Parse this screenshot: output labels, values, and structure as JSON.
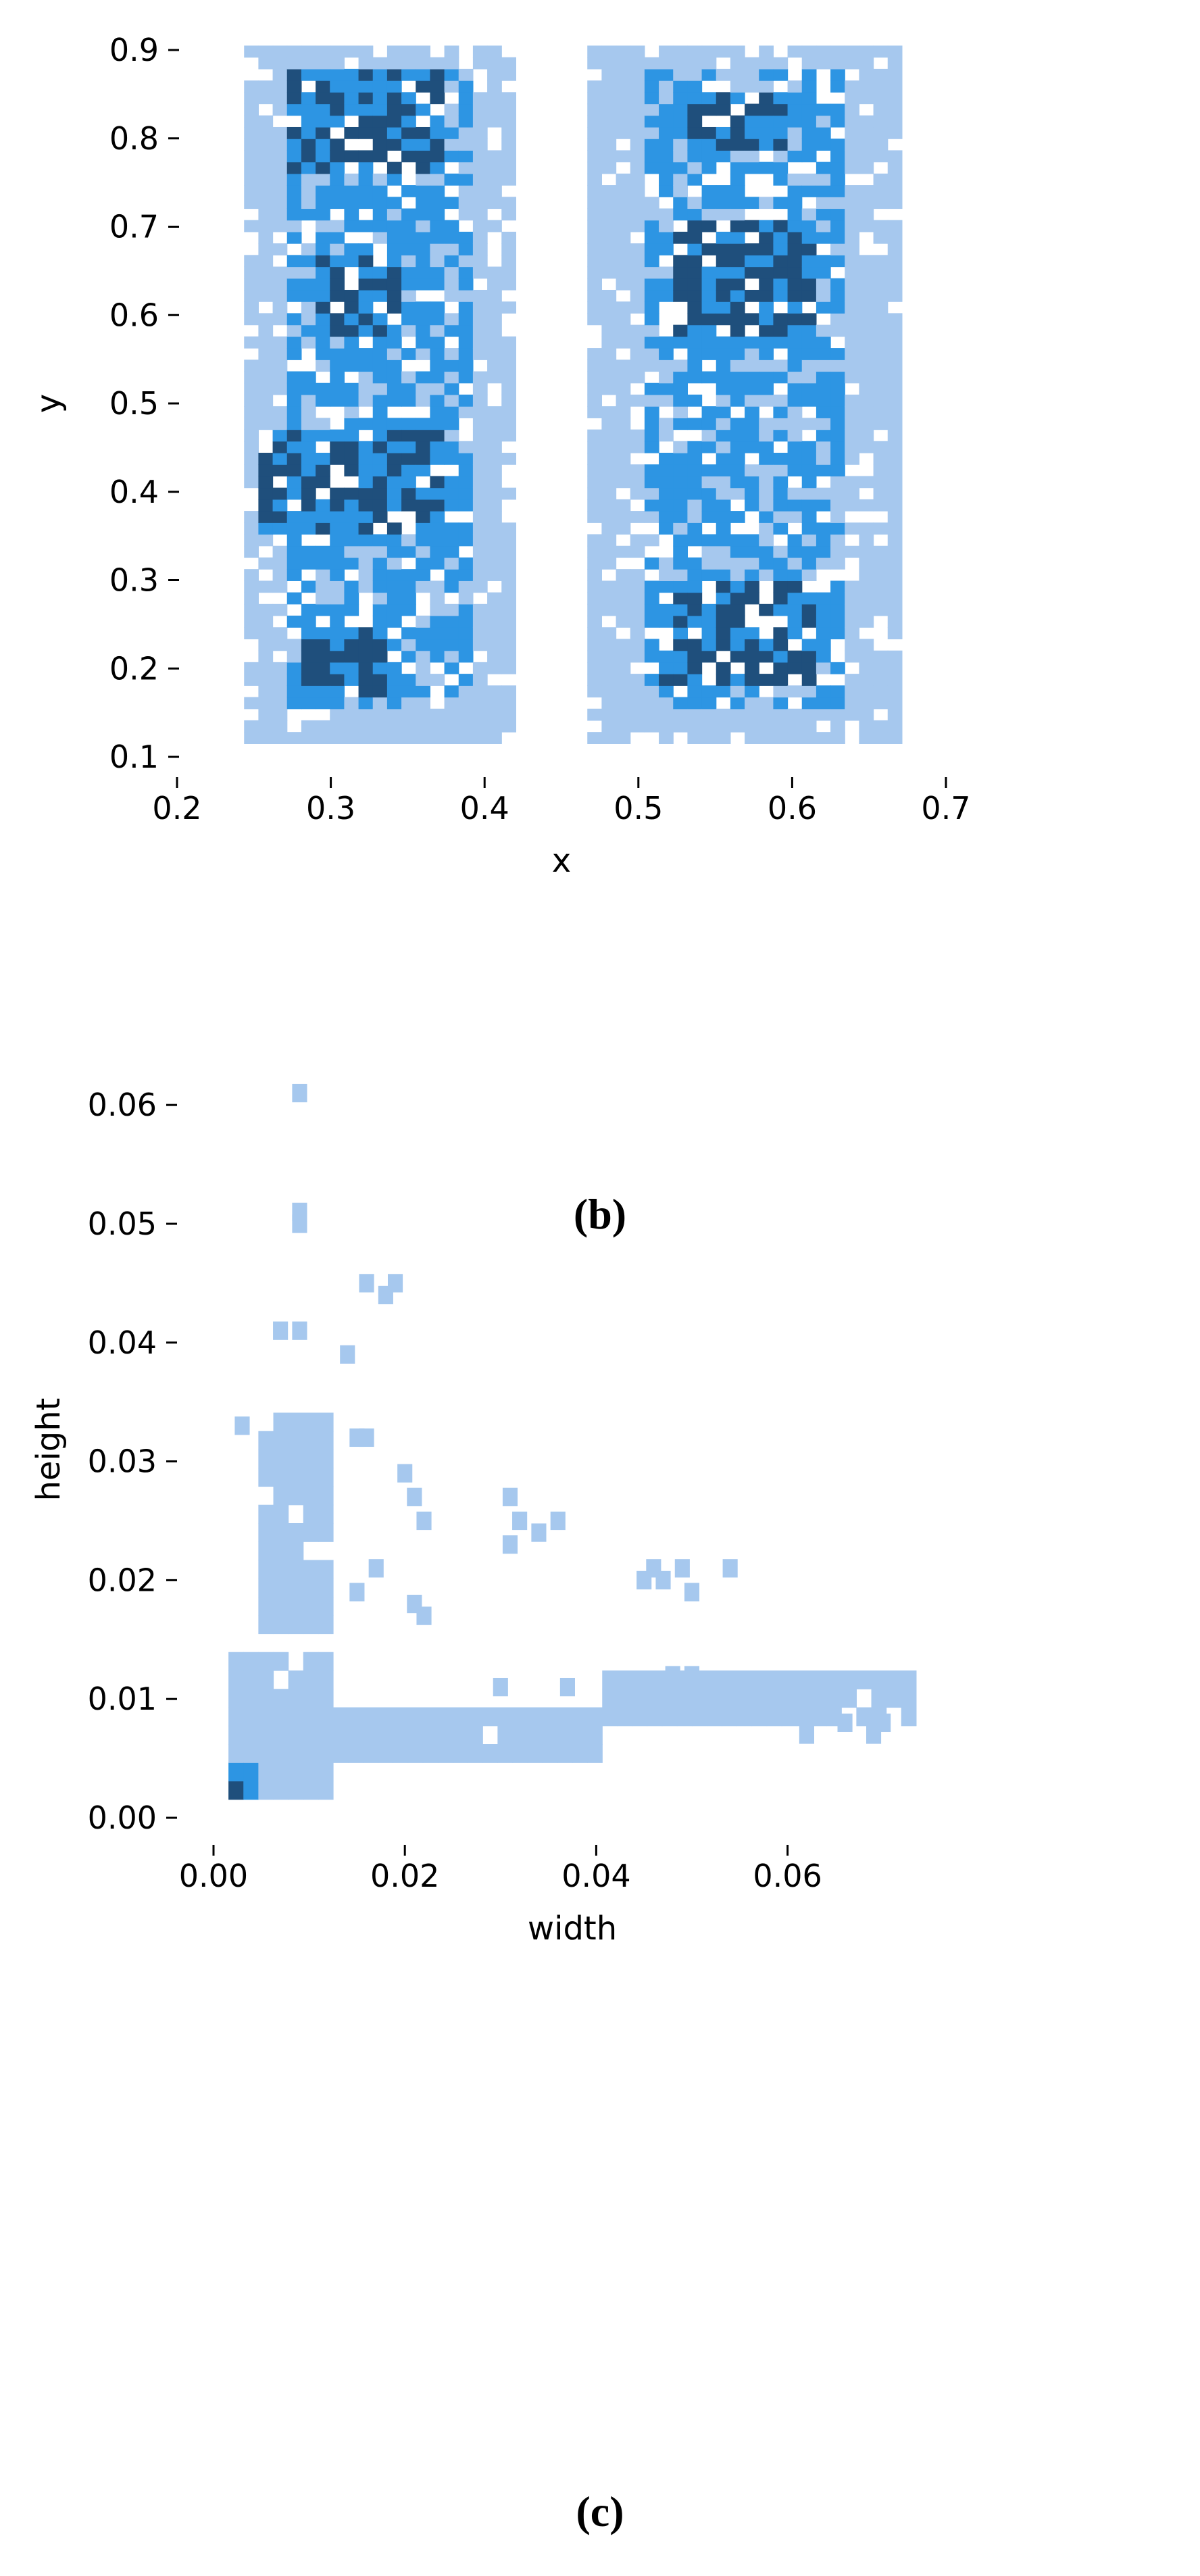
{
  "captions": {
    "b": "(b)",
    "c": "(c)"
  },
  "colors": {
    "light": "#a6c8ee",
    "mid": "#2d95e3",
    "dark": "#1f4f7c",
    "axis": "#000000",
    "background": "#ffffff"
  },
  "chart_data": [
    {
      "type": "heatmap",
      "panel": "b",
      "title": "",
      "xlabel": "x",
      "ylabel": "y",
      "xlim": [
        0.2,
        0.7
      ],
      "ylim": [
        0.1,
        0.9
      ],
      "xticks": [
        "0.2",
        "0.3",
        "0.4",
        "0.5",
        "0.6",
        "0.7"
      ],
      "yticks": [
        "0.1",
        "0.2",
        "0.3",
        "0.4",
        "0.5",
        "0.6",
        "0.7",
        "0.8",
        "0.9"
      ],
      "grid": false,
      "density": [
        {
          "x_range": [
            0.24,
            0.42
          ],
          "y_range": [
            0.12,
            0.9
          ],
          "level": "light"
        },
        {
          "x_range": [
            0.27,
            0.39
          ],
          "y_range": [
            0.15,
            0.88
          ],
          "level": "mid"
        },
        {
          "x_range": [
            0.27,
            0.37
          ],
          "y_range": [
            0.76,
            0.88
          ],
          "level": "dark"
        },
        {
          "x_range": [
            0.25,
            0.37
          ],
          "y_range": [
            0.35,
            0.47
          ],
          "level": "dark"
        },
        {
          "x_range": [
            0.29,
            0.35
          ],
          "y_range": [
            0.58,
            0.67
          ],
          "level": "dark"
        },
        {
          "x_range": [
            0.28,
            0.34
          ],
          "y_range": [
            0.17,
            0.25
          ],
          "level": "dark"
        },
        {
          "x_range": [
            0.47,
            0.67
          ],
          "y_range": [
            0.12,
            0.9
          ],
          "level": "light"
        },
        {
          "x_range": [
            0.5,
            0.63
          ],
          "y_range": [
            0.15,
            0.88
          ],
          "level": "mid"
        },
        {
          "x_range": [
            0.52,
            0.62
          ],
          "y_range": [
            0.58,
            0.71
          ],
          "level": "dark"
        },
        {
          "x_range": [
            0.51,
            0.62
          ],
          "y_range": [
            0.18,
            0.3
          ],
          "level": "dark"
        },
        {
          "x_range": [
            0.53,
            0.6
          ],
          "y_range": [
            0.78,
            0.85
          ],
          "level": "dark"
        }
      ]
    },
    {
      "type": "heatmap",
      "panel": "c",
      "title": "",
      "xlabel": "width",
      "ylabel": "height",
      "xlim": [
        0.0,
        0.075
      ],
      "ylim": [
        0.0,
        0.062
      ],
      "xticks": [
        "0.00",
        "0.02",
        "0.04",
        "0.06"
      ],
      "yticks": [
        "0.00",
        "0.01",
        "0.02",
        "0.03",
        "0.04",
        "0.05",
        "0.06"
      ],
      "grid": false,
      "density": [
        {
          "x_range": [
            0.0015,
            0.012
          ],
          "y_range": [
            0.0015,
            0.014
          ],
          "level": "light"
        },
        {
          "x_range": [
            0.005,
            0.013
          ],
          "y_range": [
            0.015,
            0.034
          ],
          "level": "light"
        },
        {
          "x_range": [
            0.012,
            0.04
          ],
          "y_range": [
            0.005,
            0.01
          ],
          "level": "light"
        },
        {
          "x_range": [
            0.04,
            0.073
          ],
          "y_range": [
            0.007,
            0.012
          ],
          "level": "light"
        },
        {
          "x_range": [
            0.0015,
            0.004
          ],
          "y_range": [
            0.001,
            0.004
          ],
          "level": "mid"
        },
        {
          "x_range": [
            0.0015,
            0.0025
          ],
          "y_range": [
            0.002,
            0.003
          ],
          "level": "dark"
        }
      ],
      "outliers": [
        [
          0.009,
          0.061
        ],
        [
          0.009,
          0.05
        ],
        [
          0.009,
          0.051
        ],
        [
          0.007,
          0.041
        ],
        [
          0.009,
          0.041
        ],
        [
          0.014,
          0.039
        ],
        [
          0.016,
          0.045
        ],
        [
          0.018,
          0.044
        ],
        [
          0.019,
          0.045
        ],
        [
          0.003,
          0.033
        ],
        [
          0.015,
          0.032
        ],
        [
          0.016,
          0.032
        ],
        [
          0.02,
          0.029
        ],
        [
          0.021,
          0.027
        ],
        [
          0.022,
          0.025
        ],
        [
          0.031,
          0.027
        ],
        [
          0.032,
          0.025
        ],
        [
          0.034,
          0.024
        ],
        [
          0.036,
          0.025
        ],
        [
          0.031,
          0.023
        ],
        [
          0.045,
          0.02
        ],
        [
          0.046,
          0.021
        ],
        [
          0.047,
          0.02
        ],
        [
          0.049,
          0.021
        ],
        [
          0.05,
          0.019
        ],
        [
          0.054,
          0.021
        ],
        [
          0.015,
          0.019
        ],
        [
          0.017,
          0.021
        ],
        [
          0.021,
          0.018
        ],
        [
          0.022,
          0.017
        ],
        [
          0.03,
          0.011
        ],
        [
          0.037,
          0.011
        ],
        [
          0.048,
          0.012
        ],
        [
          0.05,
          0.012
        ],
        [
          0.07,
          0.008
        ],
        [
          0.072,
          0.011
        ],
        [
          0.069,
          0.007
        ],
        [
          0.062,
          0.007
        ],
        [
          0.066,
          0.008
        ]
      ]
    }
  ]
}
